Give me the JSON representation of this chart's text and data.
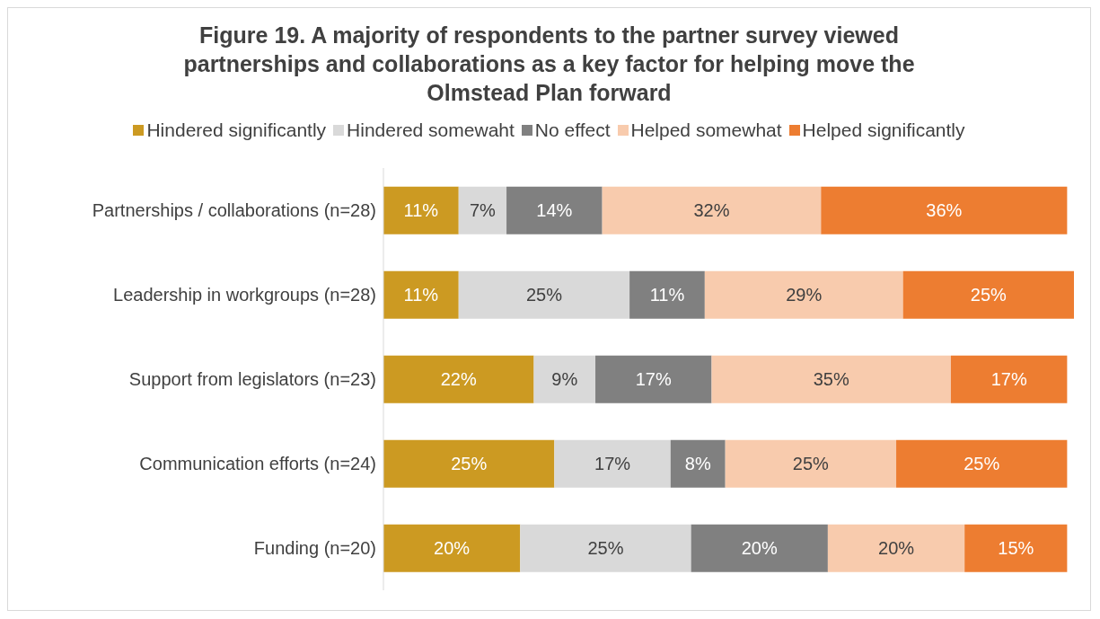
{
  "chart_data": {
    "type": "bar",
    "orientation": "horizontal",
    "stacked": true,
    "title": "Figure 19. A majority of respondents to the partner survey viewed partnerships and collaborations as a key factor for helping move the Olmstead Plan forward",
    "categories": [
      "Partnerships / collaborations (n=28)",
      "Leadership in workgroups (n=28)",
      "Support from legislators (n=23)",
      "Communication efforts (n=24)",
      "Funding (n=20)"
    ],
    "series": [
      {
        "name": "Hindered significantly",
        "color": "#cc9a22",
        "values": [
          11,
          11,
          22,
          25,
          20
        ],
        "value_labels": [
          "11%",
          "11%",
          "22%",
          "25%",
          "20%"
        ]
      },
      {
        "name": "Hindered somewaht",
        "color": "#d9d9d9",
        "values": [
          7,
          25,
          9,
          17,
          25
        ],
        "value_labels": [
          "7%",
          "25%",
          "9%",
          "17%",
          "25%"
        ]
      },
      {
        "name": "No effect",
        "color": "#808080",
        "values": [
          14,
          11,
          17,
          8,
          20
        ],
        "value_labels": [
          "14%",
          "11%",
          "17%",
          "8%",
          "20%"
        ]
      },
      {
        "name": "Helped somewhat",
        "color": "#f8cbad",
        "values": [
          32,
          29,
          35,
          25,
          20
        ],
        "value_labels": [
          "32%",
          "29%",
          "35%",
          "25%",
          "20%"
        ]
      },
      {
        "name": "Helped significantly",
        "color": "#ed7d31",
        "values": [
          36,
          25,
          17,
          25,
          15
        ],
        "value_labels": [
          "36%",
          "25%",
          "17%",
          "25%",
          "15%"
        ]
      }
    ],
    "xlim": [
      0,
      101
    ],
    "tick_labels": "y",
    "legend": "top",
    "grid": false
  }
}
